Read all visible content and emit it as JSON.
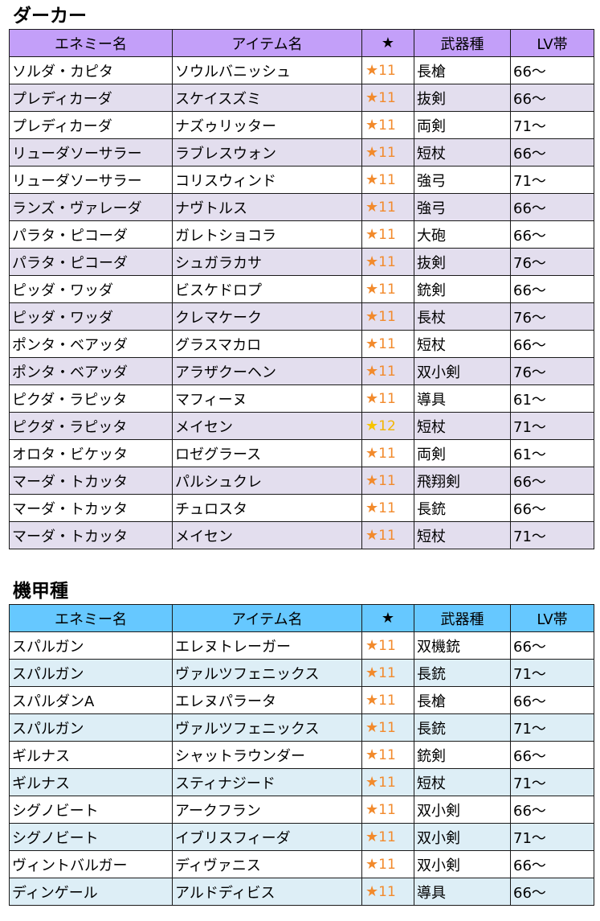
{
  "sections": [
    {
      "title": "ダーカー",
      "header_color": "#c39ff9",
      "stripe_color": "#e3deee",
      "headers": [
        "エネミー名",
        "アイテム名",
        "★",
        "武器種",
        "LV帯"
      ],
      "rows": [
        {
          "enemy": "ソルダ・カピタ",
          "item": "ソウルバニッシュ",
          "rarity": "★",
          "rarity_num": "11",
          "rarity_color": "orange",
          "weapon": "長槍",
          "lv": "66～"
        },
        {
          "enemy": "プレディカーダ",
          "item": "スケイスズミ",
          "rarity": "★",
          "rarity_num": "11",
          "rarity_color": "orange",
          "weapon": "抜剣",
          "lv": "66～"
        },
        {
          "enemy": "プレディカーダ",
          "item": "ナズゥリッター",
          "rarity": "★",
          "rarity_num": "11",
          "rarity_color": "orange",
          "weapon": "両剣",
          "lv": "71～"
        },
        {
          "enemy": "リューダソーサラー",
          "item": "ラブレスウォン",
          "rarity": "★",
          "rarity_num": "11",
          "rarity_color": "orange",
          "weapon": "短杖",
          "lv": "66～"
        },
        {
          "enemy": "リューダソーサラー",
          "item": "コリスウィンド",
          "rarity": "★",
          "rarity_num": "11",
          "rarity_color": "orange",
          "weapon": "強弓",
          "lv": "71～"
        },
        {
          "enemy": "ランズ・ヴァレーダ",
          "item": "ナヴトルス",
          "rarity": "★",
          "rarity_num": "11",
          "rarity_color": "orange",
          "weapon": "強弓",
          "lv": "66～"
        },
        {
          "enemy": "パラタ・ピコーダ",
          "item": "ガレトショコラ",
          "rarity": "★",
          "rarity_num": "11",
          "rarity_color": "orange",
          "weapon": "大砲",
          "lv": "66～"
        },
        {
          "enemy": "パラタ・ピコーダ",
          "item": "シュガラカサ",
          "rarity": "★",
          "rarity_num": "11",
          "rarity_color": "orange",
          "weapon": "抜剣",
          "lv": "76～"
        },
        {
          "enemy": "ピッダ・ワッダ",
          "item": "ビスケドロプ",
          "rarity": "★",
          "rarity_num": "11",
          "rarity_color": "orange",
          "weapon": "銃剣",
          "lv": "66～"
        },
        {
          "enemy": "ピッダ・ワッダ",
          "item": "クレマケーク",
          "rarity": "★",
          "rarity_num": "11",
          "rarity_color": "orange",
          "weapon": "長杖",
          "lv": "76～"
        },
        {
          "enemy": "ポンタ・ベアッダ",
          "item": "グラスマカロ",
          "rarity": "★",
          "rarity_num": "11",
          "rarity_color": "orange",
          "weapon": "短杖",
          "lv": "66～"
        },
        {
          "enemy": "ポンタ・ベアッダ",
          "item": "アラザクーヘン",
          "rarity": "★",
          "rarity_num": "11",
          "rarity_color": "orange",
          "weapon": "双小剣",
          "lv": "76～"
        },
        {
          "enemy": "ピクダ・ラピッタ",
          "item": "マフィーヌ",
          "rarity": "★",
          "rarity_num": "11",
          "rarity_color": "orange",
          "weapon": "導具",
          "lv": "61～"
        },
        {
          "enemy": "ピクダ・ラピッタ",
          "item": "メイセン",
          "rarity": "★",
          "rarity_num": "12",
          "rarity_color": "gold",
          "weapon": "短杖",
          "lv": "71～"
        },
        {
          "enemy": "オロタ・ビケッタ",
          "item": "ロゼグラース",
          "rarity": "★",
          "rarity_num": "11",
          "rarity_color": "orange",
          "weapon": "両剣",
          "lv": "61～"
        },
        {
          "enemy": "マーダ・トカッタ",
          "item": "パルシュクレ",
          "rarity": "★",
          "rarity_num": "11",
          "rarity_color": "orange",
          "weapon": "飛翔剣",
          "lv": "66～"
        },
        {
          "enemy": "マーダ・トカッタ",
          "item": "チュロスタ",
          "rarity": "★",
          "rarity_num": "11",
          "rarity_color": "orange",
          "weapon": "長銃",
          "lv": "66～"
        },
        {
          "enemy": "マーダ・トカッタ",
          "item": "メイセン",
          "rarity": "★",
          "rarity_num": "11",
          "rarity_color": "orange",
          "weapon": "短杖",
          "lv": "71～"
        }
      ]
    },
    {
      "title": "機甲種",
      "header_color": "#66c8ff",
      "stripe_color": "#ddeef6",
      "headers": [
        "エネミー名",
        "アイテム名",
        "★",
        "武器種",
        "LV帯"
      ],
      "rows": [
        {
          "enemy": "スパルガン",
          "item": "エレヌトレーガー",
          "rarity": "★",
          "rarity_num": "11",
          "rarity_color": "orange",
          "weapon": "双機銃",
          "lv": "66～"
        },
        {
          "enemy": "スパルガン",
          "item": "ヴァルツフェニックス",
          "rarity": "★",
          "rarity_num": "11",
          "rarity_color": "orange",
          "weapon": "長銃",
          "lv": "71～"
        },
        {
          "enemy": "スパルダンA",
          "item": "エレヌパラータ",
          "rarity": "★",
          "rarity_num": "11",
          "rarity_color": "orange",
          "weapon": "長槍",
          "lv": "66～"
        },
        {
          "enemy": "スパルガン",
          "item": "ヴァルツフェニックス",
          "rarity": "★",
          "rarity_num": "11",
          "rarity_color": "orange",
          "weapon": "長銃",
          "lv": "71～"
        },
        {
          "enemy": "ギルナス",
          "item": "シャットラウンダー",
          "rarity": "★",
          "rarity_num": "11",
          "rarity_color": "orange",
          "weapon": "銃剣",
          "lv": "66～"
        },
        {
          "enemy": "ギルナス",
          "item": "スティナジード",
          "rarity": "★",
          "rarity_num": "11",
          "rarity_color": "orange",
          "weapon": "短杖",
          "lv": "71～"
        },
        {
          "enemy": "シグノビート",
          "item": "アークフラン",
          "rarity": "★",
          "rarity_num": "11",
          "rarity_color": "orange",
          "weapon": "双小剣",
          "lv": "66～"
        },
        {
          "enemy": "シグノビート",
          "item": "イブリスフィーダ",
          "rarity": "★",
          "rarity_num": "11",
          "rarity_color": "orange",
          "weapon": "双小剣",
          "lv": "71～"
        },
        {
          "enemy": "ヴィントバルガー",
          "item": "ディヴァニス",
          "rarity": "★",
          "rarity_num": "11",
          "rarity_color": "orange",
          "weapon": "双小剣",
          "lv": "66～"
        },
        {
          "enemy": "ディンゲール",
          "item": "アルドディビス",
          "rarity": "★",
          "rarity_num": "11",
          "rarity_color": "orange",
          "weapon": "導具",
          "lv": "66～"
        }
      ]
    }
  ]
}
